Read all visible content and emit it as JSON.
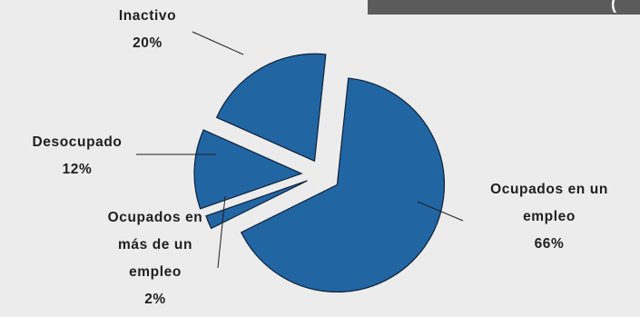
{
  "header": {
    "partial_text": "("
  },
  "chart_data": {
    "type": "pie",
    "title": "",
    "slices": [
      {
        "name": "Ocupados en un empleo",
        "lines": [
          "Ocupados en un",
          "empleo"
        ],
        "pct": "66%",
        "value": 66,
        "color": "#2265a3"
      },
      {
        "name": "Ocupados en más de un empleo",
        "lines": [
          "Ocupados en",
          "más de un",
          "empleo"
        ],
        "pct": "2%",
        "value": 2,
        "color": "#2265a3"
      },
      {
        "name": "Desocupado",
        "lines": [
          "Desocupado"
        ],
        "pct": "12%",
        "value": 12,
        "color": "#2265a3"
      },
      {
        "name": "Inactivo",
        "lines": [
          "Inactivo"
        ],
        "pct": "20%",
        "value": 20,
        "color": "#2265a3"
      }
    ]
  }
}
